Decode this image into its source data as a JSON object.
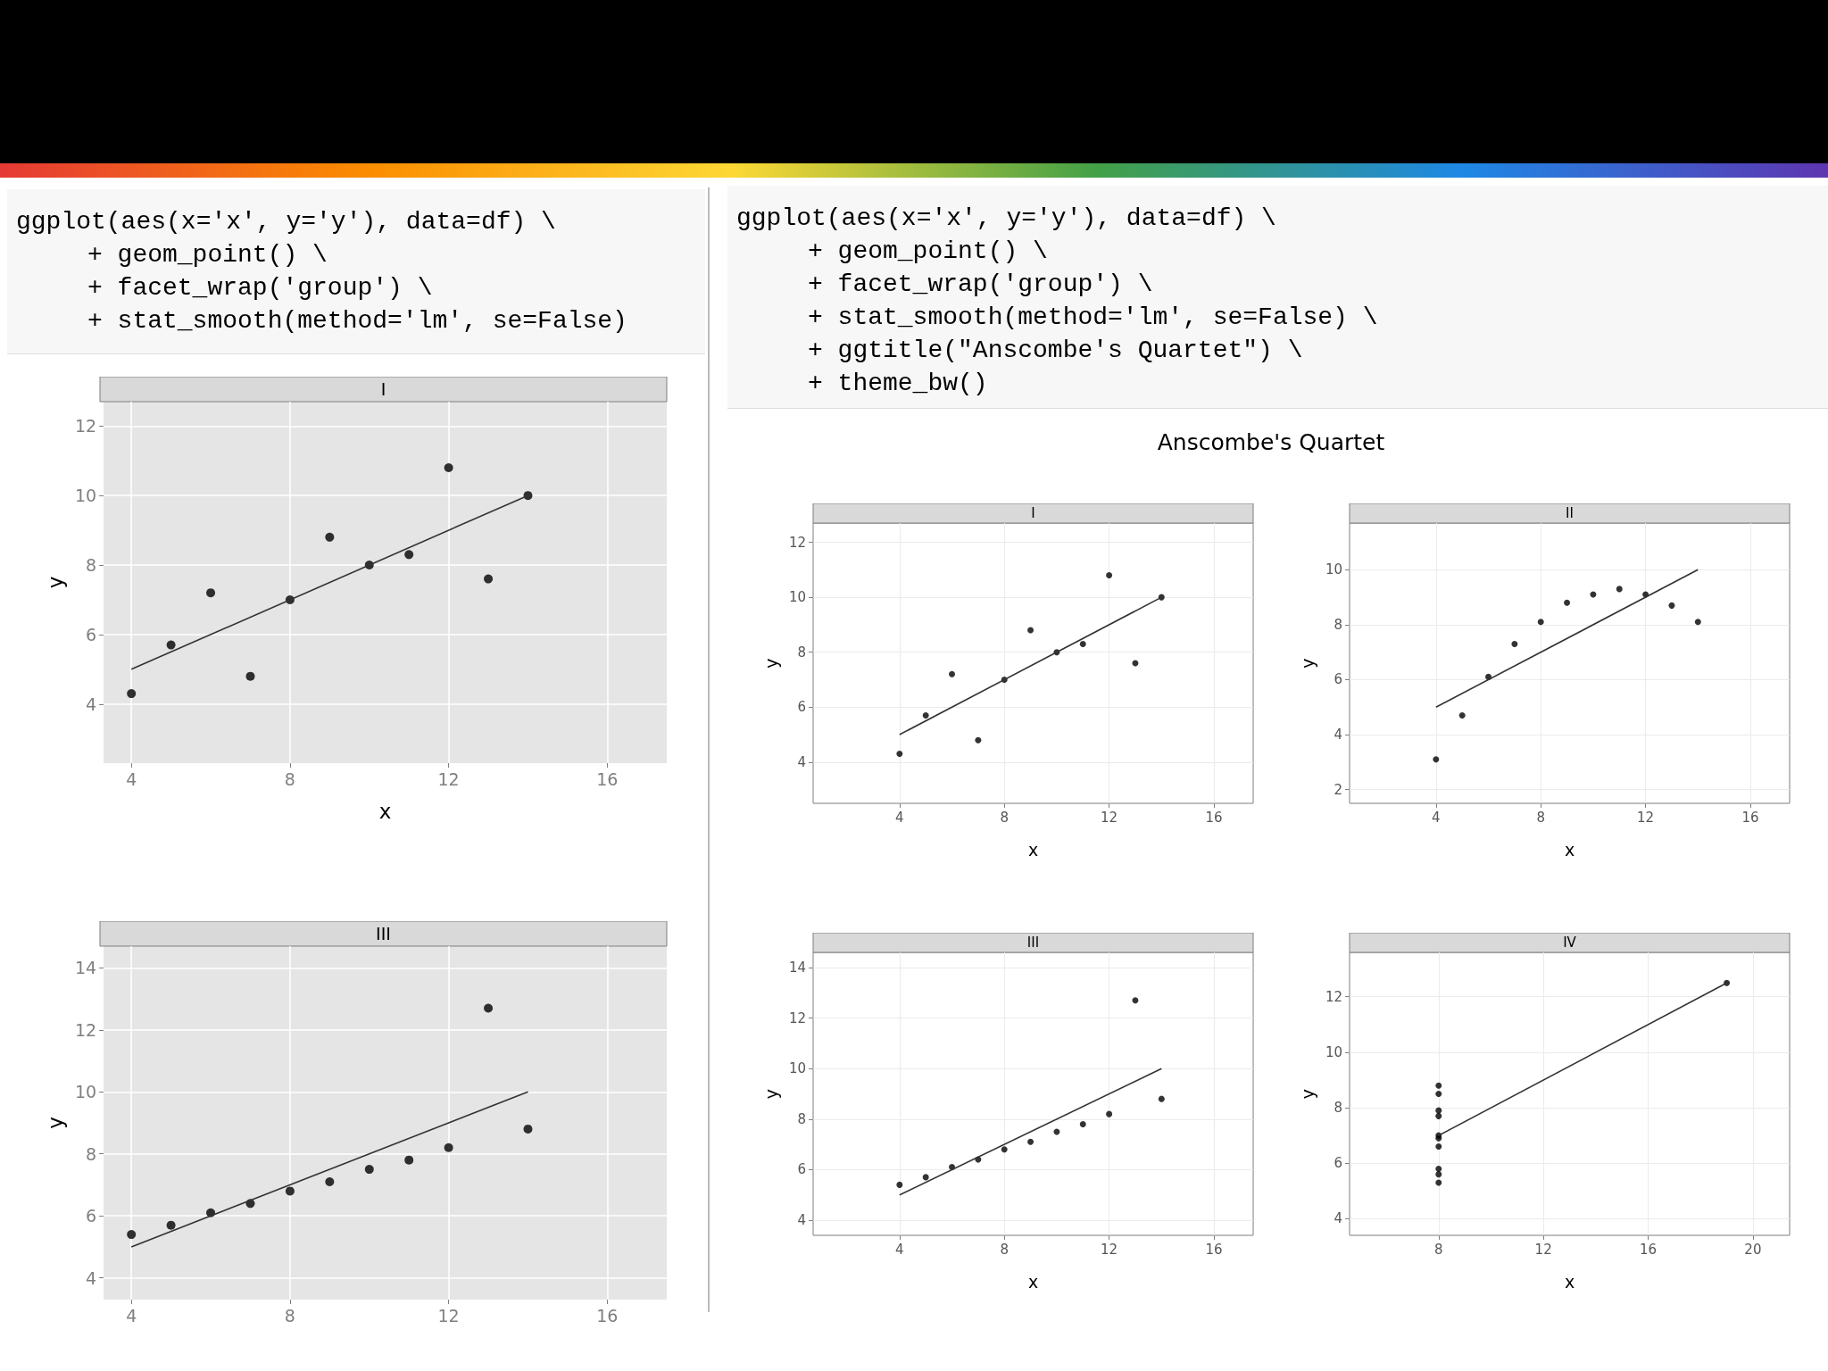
{
  "chart_data": [
    {
      "type": "other",
      "annotations": [
        "ggplot(aes(x='x', y='y'), data=df) \\",
        "+ geom_point() \\",
        "+ facet_wrap('group') \\",
        "+ stat_smooth(method='lm', se=False)"
      ]
    },
    {
      "type": "scatter",
      "title": "I",
      "xlabel": "x",
      "ylabel": "y",
      "xlim": [
        3.3,
        17.5
      ],
      "ylim": [
        2.3,
        12.7
      ],
      "xticks": [
        4,
        8,
        12,
        16
      ],
      "yticks": [
        4,
        6,
        8,
        10,
        12
      ],
      "grid": true,
      "series": [
        {
          "color": "#000000",
          "marker": "circle",
          "x": [
            10,
            8,
            13,
            9,
            11,
            14,
            6,
            4,
            12,
            7,
            5
          ],
          "values": [
            8.0,
            7.0,
            7.6,
            8.8,
            8.3,
            10.0,
            7.2,
            4.3,
            10.8,
            4.8,
            5.7
          ]
        },
        {
          "type": "line",
          "marker": "none",
          "color": "#333333",
          "x": [
            4,
            14
          ],
          "values": [
            5,
            10
          ]
        }
      ]
    },
    {
      "type": "scatter",
      "title": "III",
      "ylabel": "y",
      "xlim": [
        3.3,
        17.5
      ],
      "ylim": [
        3.3,
        14.7
      ],
      "xticks": [
        4,
        8,
        12,
        16
      ],
      "yticks": [
        4,
        6,
        8,
        10,
        12,
        14
      ],
      "grid": true,
      "series": [
        {
          "color": "#000000",
          "marker": "circle",
          "x": [
            10,
            8,
            13,
            9,
            11,
            14,
            6,
            4,
            12,
            7,
            5
          ],
          "values": [
            7.5,
            6.8,
            12.7,
            7.1,
            7.8,
            8.8,
            6.1,
            5.4,
            8.2,
            6.4,
            5.7
          ]
        },
        {
          "type": "line",
          "marker": "none",
          "color": "#333333",
          "x": [
            4,
            14
          ],
          "values": [
            5,
            10
          ]
        }
      ]
    },
    {
      "type": "other",
      "annotations": [
        "ggplot(aes(x='x', y='y'), data=df) \\",
        "+ geom_point() \\",
        "+ facet_wrap('group') \\",
        "+ stat_smooth(method='lm', se=False) \\",
        "+ ggtitle(\"Anscombe's Quartet\") \\",
        "+ theme_bw()"
      ]
    },
    {
      "type": "other",
      "title": "Anscombe's Quartet"
    },
    {
      "type": "scatter",
      "title": "I",
      "xlabel": "x",
      "ylabel": "y",
      "xlim": [
        0.7,
        17.5
      ],
      "ylim": [
        2.5,
        12.7
      ],
      "xticks": [
        4,
        8,
        12,
        16
      ],
      "yticks": [
        4,
        6,
        8,
        10,
        12
      ],
      "grid": true,
      "series": [
        {
          "color": "#000000",
          "marker": "circle",
          "x": [
            10,
            8,
            13,
            9,
            11,
            14,
            6,
            4,
            12,
            7,
            5
          ],
          "values": [
            8.0,
            7.0,
            7.6,
            8.8,
            8.3,
            10.0,
            7.2,
            4.3,
            10.8,
            4.8,
            5.7
          ]
        },
        {
          "type": "line",
          "marker": "none",
          "color": "#333333",
          "x": [
            4,
            14
          ],
          "values": [
            5,
            10
          ]
        }
      ]
    },
    {
      "type": "scatter",
      "title": "II",
      "xlabel": "x",
      "ylabel": "y",
      "xlim": [
        0.7,
        17.5
      ],
      "ylim": [
        1.5,
        11.7
      ],
      "xticks": [
        4,
        8,
        12,
        16
      ],
      "yticks": [
        2,
        4,
        6,
        8,
        10
      ],
      "grid": true,
      "series": [
        {
          "color": "#000000",
          "marker": "circle",
          "x": [
            10,
            8,
            13,
            9,
            11,
            14,
            6,
            4,
            12,
            7,
            5
          ],
          "values": [
            9.1,
            8.1,
            8.7,
            8.8,
            9.3,
            8.1,
            6.1,
            3.1,
            9.1,
            7.3,
            4.7
          ]
        },
        {
          "type": "line",
          "marker": "none",
          "color": "#333333",
          "x": [
            4,
            14
          ],
          "values": [
            5,
            10
          ]
        }
      ]
    },
    {
      "type": "scatter",
      "title": "III",
      "xlabel": "x",
      "ylabel": "y",
      "xlim": [
        0.7,
        17.5
      ],
      "ylim": [
        3.4,
        14.6
      ],
      "xticks": [
        4,
        8,
        12,
        16
      ],
      "yticks": [
        4,
        6,
        8,
        10,
        12,
        14
      ],
      "grid": true,
      "series": [
        {
          "color": "#000000",
          "marker": "circle",
          "x": [
            10,
            8,
            13,
            9,
            11,
            14,
            6,
            4,
            12,
            7,
            5
          ],
          "values": [
            7.5,
            6.8,
            12.7,
            7.1,
            7.8,
            8.8,
            6.1,
            5.4,
            8.2,
            6.4,
            5.7
          ]
        },
        {
          "type": "line",
          "marker": "none",
          "color": "#333333",
          "x": [
            4,
            14
          ],
          "values": [
            5,
            10
          ]
        }
      ]
    },
    {
      "type": "scatter",
      "title": "IV",
      "xlabel": "x",
      "ylabel": "y",
      "xlim": [
        4.6,
        21.4
      ],
      "ylim": [
        3.4,
        13.6
      ],
      "xticks": [
        8,
        12,
        16,
        20
      ],
      "yticks": [
        4,
        6,
        8,
        10,
        12
      ],
      "grid": true,
      "series": [
        {
          "color": "#000000",
          "marker": "circle",
          "x": [
            8,
            8,
            8,
            8,
            8,
            8,
            8,
            19,
            8,
            8,
            8
          ],
          "values": [
            6.6,
            5.8,
            7.7,
            8.8,
            8.5,
            7.0,
            5.3,
            12.5,
            5.6,
            7.9,
            6.9
          ]
        },
        {
          "type": "line",
          "marker": "none",
          "color": "#333333",
          "x": [
            8,
            19
          ],
          "values": [
            7,
            12.5
          ]
        }
      ]
    }
  ]
}
